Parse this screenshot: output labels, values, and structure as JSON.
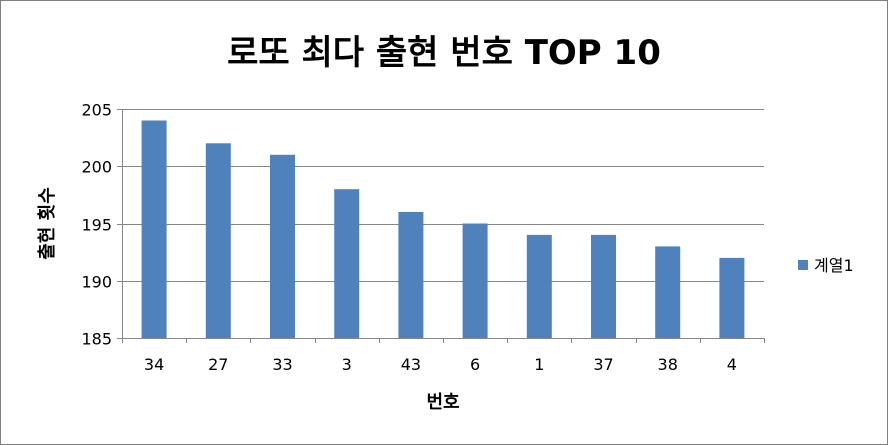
{
  "chart_data": {
    "type": "bar",
    "title": "로또 최다 출현 번호 TOP 10",
    "xlabel": "번호",
    "ylabel": "출현 횟수",
    "categories": [
      "34",
      "27",
      "33",
      "3",
      "43",
      "6",
      "1",
      "37",
      "38",
      "4"
    ],
    "series": [
      {
        "name": "계열1",
        "values": [
          204,
          202,
          201,
          198,
          196,
          195,
          194,
          194,
          193,
          192
        ]
      }
    ],
    "ylim": [
      185,
      205
    ],
    "yticks": [
      185,
      190,
      195,
      200,
      205
    ],
    "grid": true,
    "legend_position": "right",
    "colors": {
      "bar": "#4f81bd",
      "grid": "#868686",
      "axis": "#868686"
    }
  }
}
